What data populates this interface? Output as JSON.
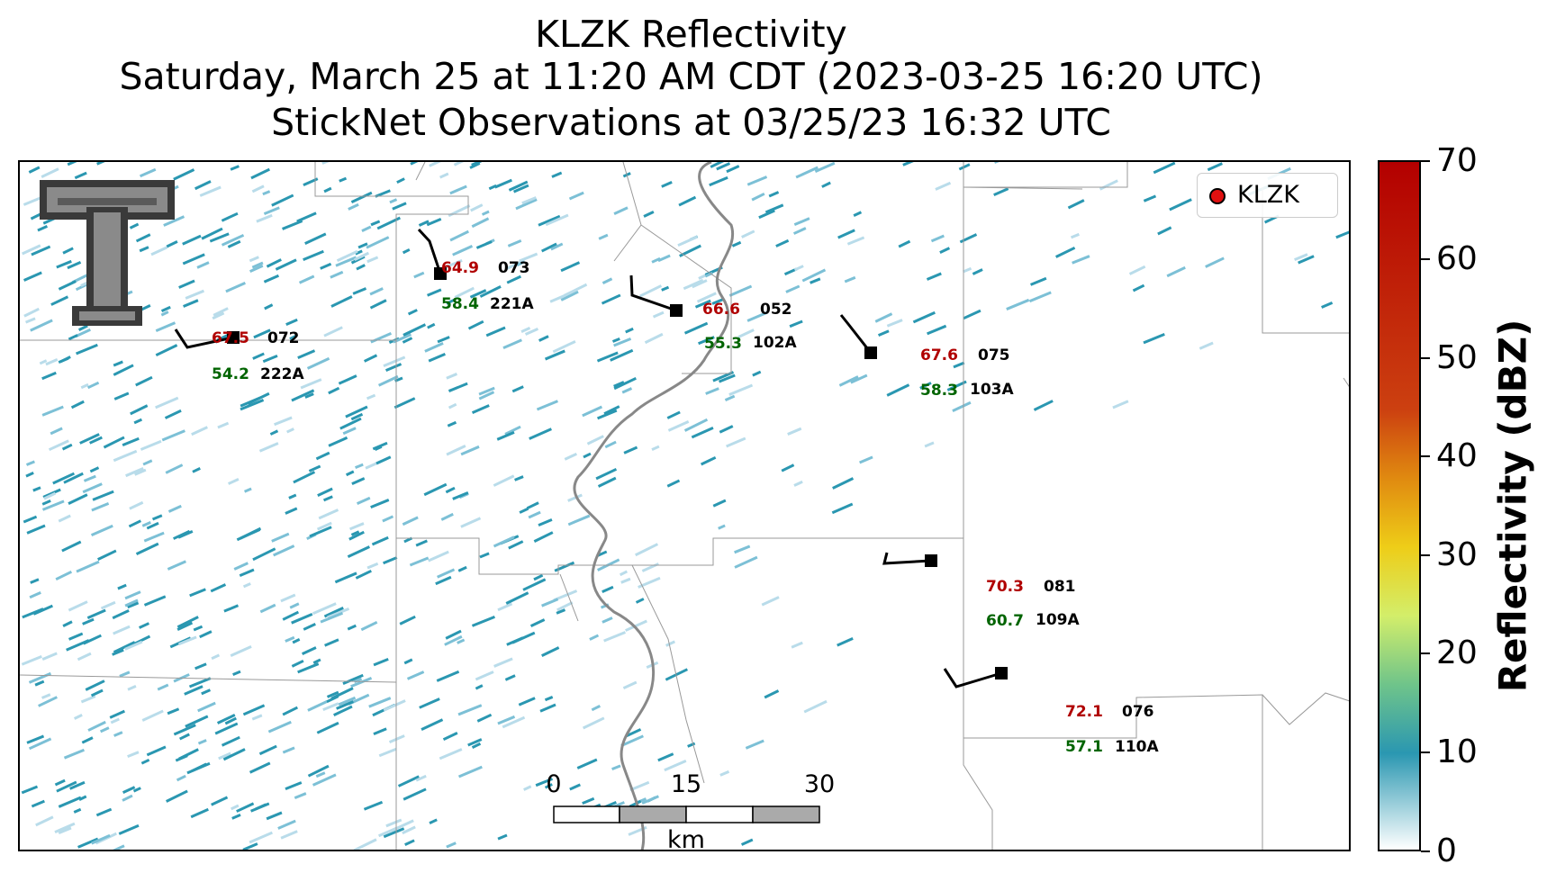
{
  "title": {
    "line1": "KLZK Reflectivity",
    "line2": "Saturday, March 25 at 11:20 AM CDT (2023-03-25 16:20 UTC)",
    "line3": "StickNet Observations at 03/25/23 16:32 UTC"
  },
  "legend": {
    "label": "KLZK",
    "marker_color": "#e01010"
  },
  "colorbar": {
    "title": "Reflectivity (dBZ)",
    "ticks": [
      "0",
      "10",
      "20",
      "30",
      "40",
      "50",
      "60",
      "70"
    ]
  },
  "scalebar": {
    "labels": [
      "0",
      "15",
      "30"
    ],
    "unit": "km"
  },
  "stations": [
    {
      "temp": "67.5",
      "num": "072",
      "dew": "54.2",
      "id": "222A"
    },
    {
      "temp": "64.9",
      "num": "073",
      "dew": "58.4",
      "id": "221A"
    },
    {
      "temp": "66.6",
      "num": "052",
      "dew": "55.3",
      "id": "102A"
    },
    {
      "temp": "67.6",
      "num": "075",
      "dew": "58.3",
      "id": "103A"
    },
    {
      "temp": "70.3",
      "num": "081",
      "dew": "60.7",
      "id": "109A"
    },
    {
      "temp": "72.1",
      "num": "076",
      "dew": "57.1",
      "id": "110A"
    }
  ],
  "logo": {
    "icon": "texas-tech-double-t-logo"
  },
  "colors": {
    "temp": "#b00000",
    "dew": "#006400",
    "reflectivity_low": "#2a97b1"
  }
}
